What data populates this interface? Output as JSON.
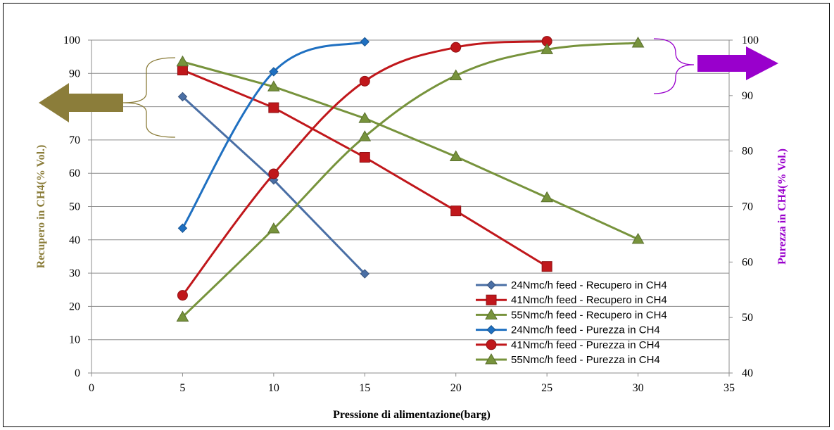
{
  "chart_data": {
    "type": "line",
    "xlabel": "Pressione di alimentazione(barg)",
    "ylabel_left": "Recupero in CH4(% Vol.)",
    "ylabel_right": "Purezza in CH4(% Vol.)",
    "xlim": [
      0,
      35
    ],
    "x_ticks": [
      0,
      5,
      10,
      15,
      20,
      25,
      30,
      35
    ],
    "ylim_left": [
      0,
      100
    ],
    "y_ticks_left": [
      0,
      10,
      20,
      30,
      40,
      50,
      60,
      70,
      80,
      90,
      100
    ],
    "ylim_right": [
      40,
      100
    ],
    "y_ticks_right": [
      40,
      50,
      60,
      70,
      80,
      90,
      100
    ],
    "grid": "horizontal",
    "legend_position": "bottom-right",
    "series": [
      {
        "name": "24Nmc/h feed - Recupero in CH4",
        "axis": "left",
        "marker": "diamond",
        "color": "#4a6fa5",
        "curve": "straight",
        "x": [
          5,
          10,
          15
        ],
        "y": [
          83,
          58,
          29.8
        ]
      },
      {
        "name": "41Nmc/h feed - Recupero in CH4",
        "axis": "left",
        "marker": "square",
        "color": "#c0171b",
        "curve": "straight",
        "x": [
          5,
          10,
          15,
          20,
          25
        ],
        "y": [
          91,
          79.7,
          64.8,
          48.7,
          32
        ]
      },
      {
        "name": "55Nmc/h feed - Recupero in CH4",
        "axis": "left",
        "marker": "triangle",
        "color": "#77933c",
        "curve": "straight",
        "x": [
          5,
          10,
          15,
          20,
          25,
          30
        ],
        "y": [
          93.5,
          86,
          76.5,
          65,
          52.7,
          40.2
        ]
      },
      {
        "name": "24Nmc/h feed - Purezza in CH4",
        "axis": "right",
        "marker": "diamond",
        "color": "#1f70c1",
        "curve": "smooth",
        "x": [
          5,
          10,
          15
        ],
        "y": [
          66.1,
          94.3,
          99.7
        ]
      },
      {
        "name": "41Nmc/h feed - Purezza in CH4",
        "axis": "right",
        "marker": "circle",
        "color": "#c0171b",
        "curve": "smooth",
        "x": [
          5,
          10,
          15,
          20,
          25
        ],
        "y": [
          54,
          75.9,
          92.6,
          98.7,
          99.8
        ]
      },
      {
        "name": "55Nmc/h feed - Purezza in CH4",
        "axis": "right",
        "marker": "triangle",
        "color": "#77933c",
        "curve": "smooth",
        "x": [
          5,
          10,
          15,
          20,
          25,
          30
        ],
        "y": [
          50.1,
          66,
          82.6,
          93.6,
          98.3,
          99.5
        ]
      }
    ],
    "annotations": {
      "left_arrow_color": "#8b7d3a",
      "right_arrow_color": "#9900cc"
    }
  },
  "colors": {
    "left_axis_title": "#8b7d3a",
    "right_axis_title": "#9900cc",
    "grid": "#8c8c8c"
  }
}
